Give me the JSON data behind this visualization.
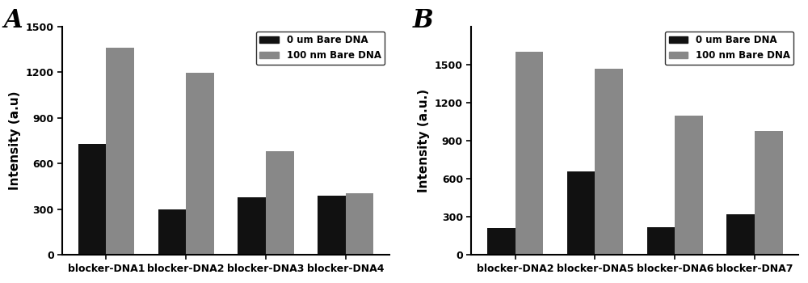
{
  "panel_A": {
    "categories": [
      "blocker-DNA1",
      "blocker-DNA2",
      "blocker-DNA3",
      "blocker-DNA4"
    ],
    "black_values": [
      730,
      300,
      380,
      390
    ],
    "gray_values": [
      1360,
      1195,
      680,
      405
    ],
    "ylabel": "Intensity (a.u)",
    "ylim": [
      0,
      1500
    ],
    "yticks": [
      0,
      300,
      600,
      900,
      1200,
      1500
    ],
    "label": "A"
  },
  "panel_B": {
    "categories": [
      "blocker-DNA2",
      "blocker-DNA5",
      "blocker-DNA6",
      "blocker-DNA7"
    ],
    "black_values": [
      215,
      660,
      220,
      320
    ],
    "gray_values": [
      1600,
      1470,
      1095,
      975
    ],
    "ylabel": "Intensity (a.u.)",
    "ylim": [
      0,
      1800
    ],
    "yticks": [
      0,
      300,
      600,
      900,
      1200,
      1500
    ],
    "label": "B"
  },
  "legend_labels": [
    "0 um Bare DNA",
    "100 nm Bare DNA"
  ],
  "black_color": "#111111",
  "gray_color": "#888888",
  "bar_width": 0.35,
  "label_fontsize": 11,
  "tick_fontsize": 9,
  "legend_fontsize": 8.5
}
